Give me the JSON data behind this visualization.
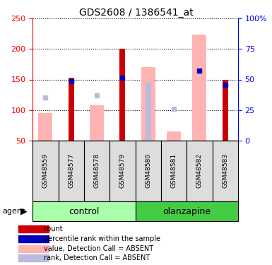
{
  "title": "GDS2608 / 1386541_at",
  "samples": [
    "GSM48559",
    "GSM48577",
    "GSM48578",
    "GSM48579",
    "GSM48580",
    "GSM48581",
    "GSM48582",
    "GSM48583"
  ],
  "ylim_left": [
    50,
    250
  ],
  "ylim_right": [
    0,
    100
  ],
  "yticks_left": [
    50,
    100,
    150,
    200,
    250
  ],
  "yticks_right": [
    0,
    25,
    50,
    75,
    100
  ],
  "yticklabels_right": [
    "0",
    "25",
    "50",
    "75",
    "100%"
  ],
  "red_bars": [
    null,
    153,
    null,
    201,
    null,
    null,
    null,
    150
  ],
  "blue_squares": [
    null,
    147,
    null,
    153,
    null,
    null,
    164,
    141
  ],
  "blue_sq_absent": [
    120,
    null,
    124,
    null,
    null,
    102,
    null,
    null
  ],
  "pink_bars": [
    95,
    null,
    108,
    null,
    170,
    65,
    224,
    null
  ],
  "lavender_bars": [
    null,
    null,
    null,
    null,
    145,
    null,
    null,
    null
  ],
  "bar_color_red": "#CC0000",
  "bar_color_blue": "#0000BB",
  "bar_color_pink": "#FFB3B3",
  "bar_color_lavender": "#BBBBDD",
  "bar_bottom": 50,
  "group_control_color_light": "#CCFFCC",
  "group_control_color_dark": "#44CC44",
  "group_olanzapine_color_light": "#CCFFCC",
  "group_olanzapine_color_dark": "#44CC44",
  "legend_items": [
    {
      "color": "#CC0000",
      "label": "count"
    },
    {
      "color": "#0000BB",
      "label": "percentile rank within the sample"
    },
    {
      "color": "#FFB3B3",
      "label": "value, Detection Call = ABSENT"
    },
    {
      "color": "#BBBBDD",
      "label": "rank, Detection Call = ABSENT"
    }
  ]
}
